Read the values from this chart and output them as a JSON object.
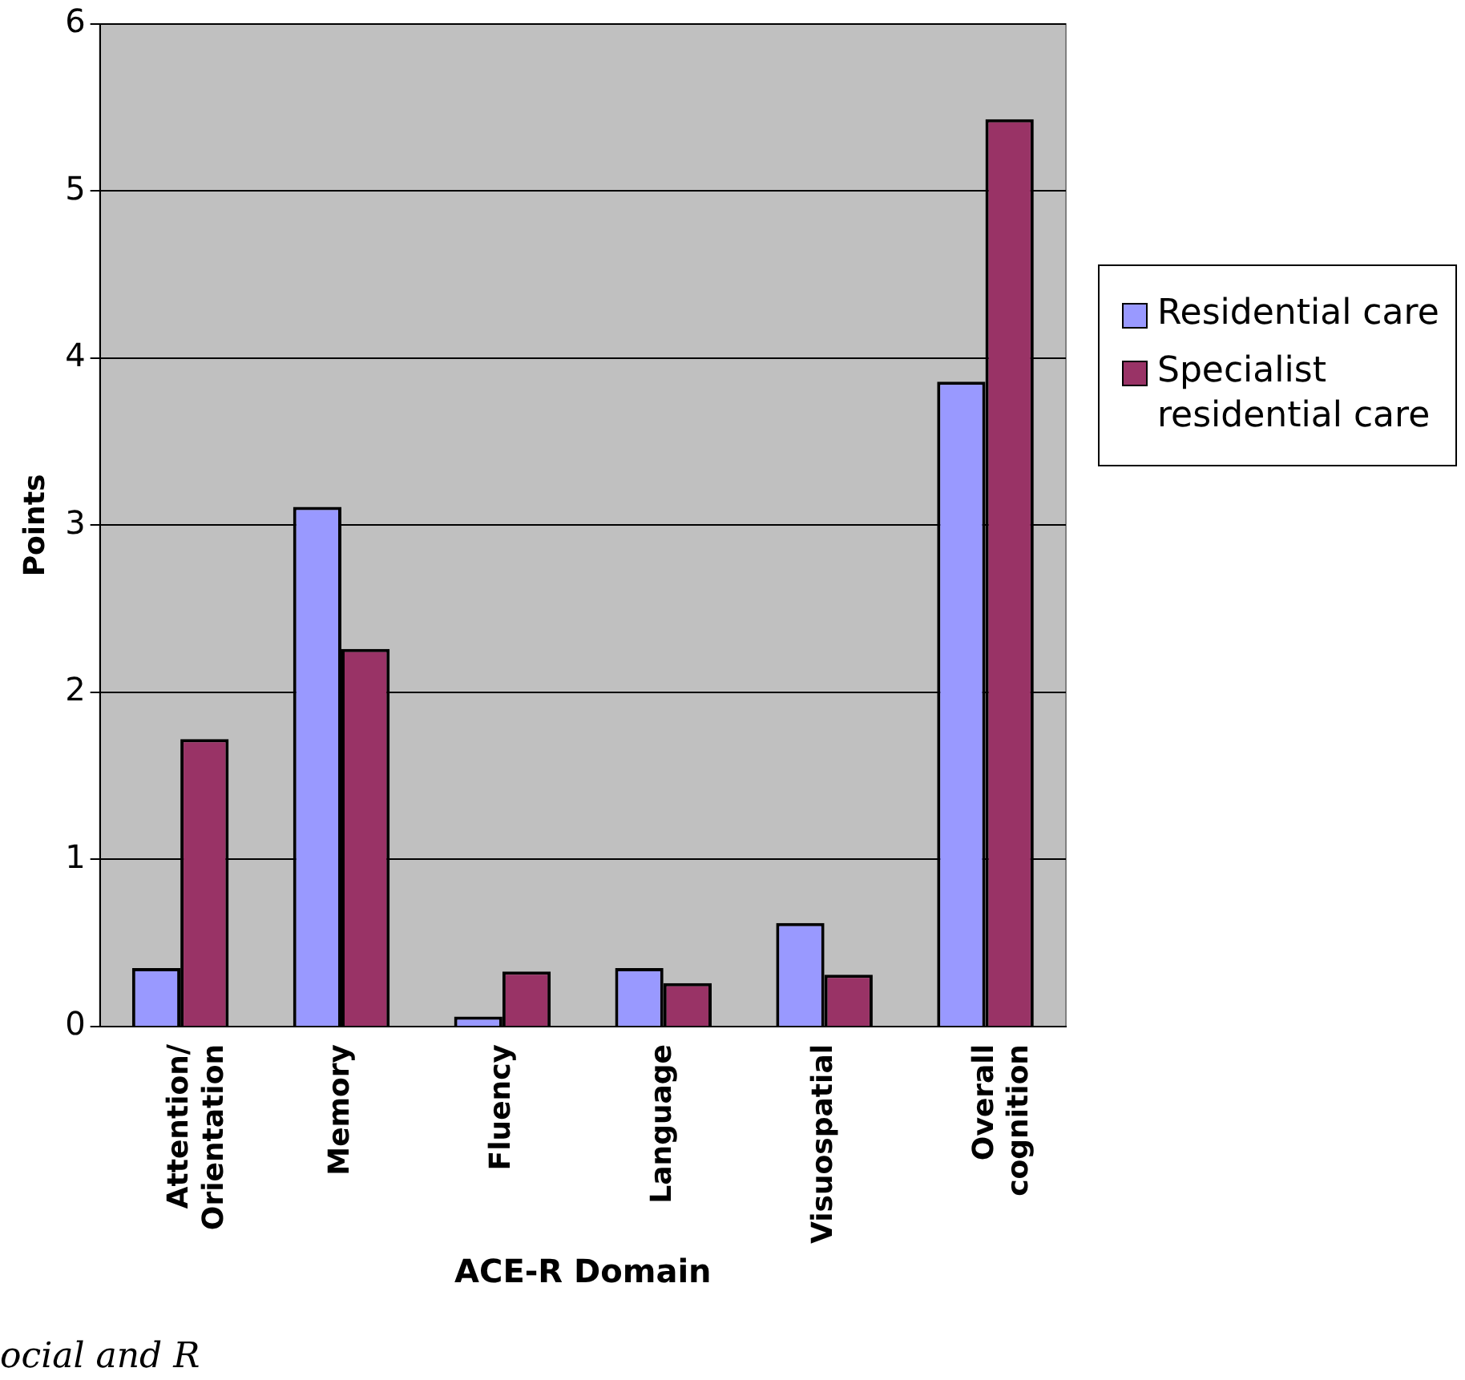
{
  "chart_data": {
    "type": "bar",
    "xlabel": "ACE-R Domain",
    "ylabel": "Points",
    "categories": [
      "Attention/ Orientation",
      "Memory",
      "Fluency",
      "Language",
      "Visuospatial",
      "Overall cognition"
    ],
    "series": [
      {
        "name": "Residential care",
        "color": "#9999ff",
        "values": [
          0.35,
          3.11,
          0.06,
          0.35,
          0.62,
          3.86
        ]
      },
      {
        "name": "Specialist residential care",
        "color": "#993366",
        "values": [
          1.72,
          2.26,
          0.33,
          0.26,
          0.31,
          5.43
        ]
      }
    ],
    "ylim": [
      0,
      6
    ],
    "yticks": [
      0,
      1,
      2,
      3,
      4,
      5,
      6
    ],
    "grid": "y",
    "legend": "right",
    "annotations": [
      "ocial and R"
    ]
  }
}
